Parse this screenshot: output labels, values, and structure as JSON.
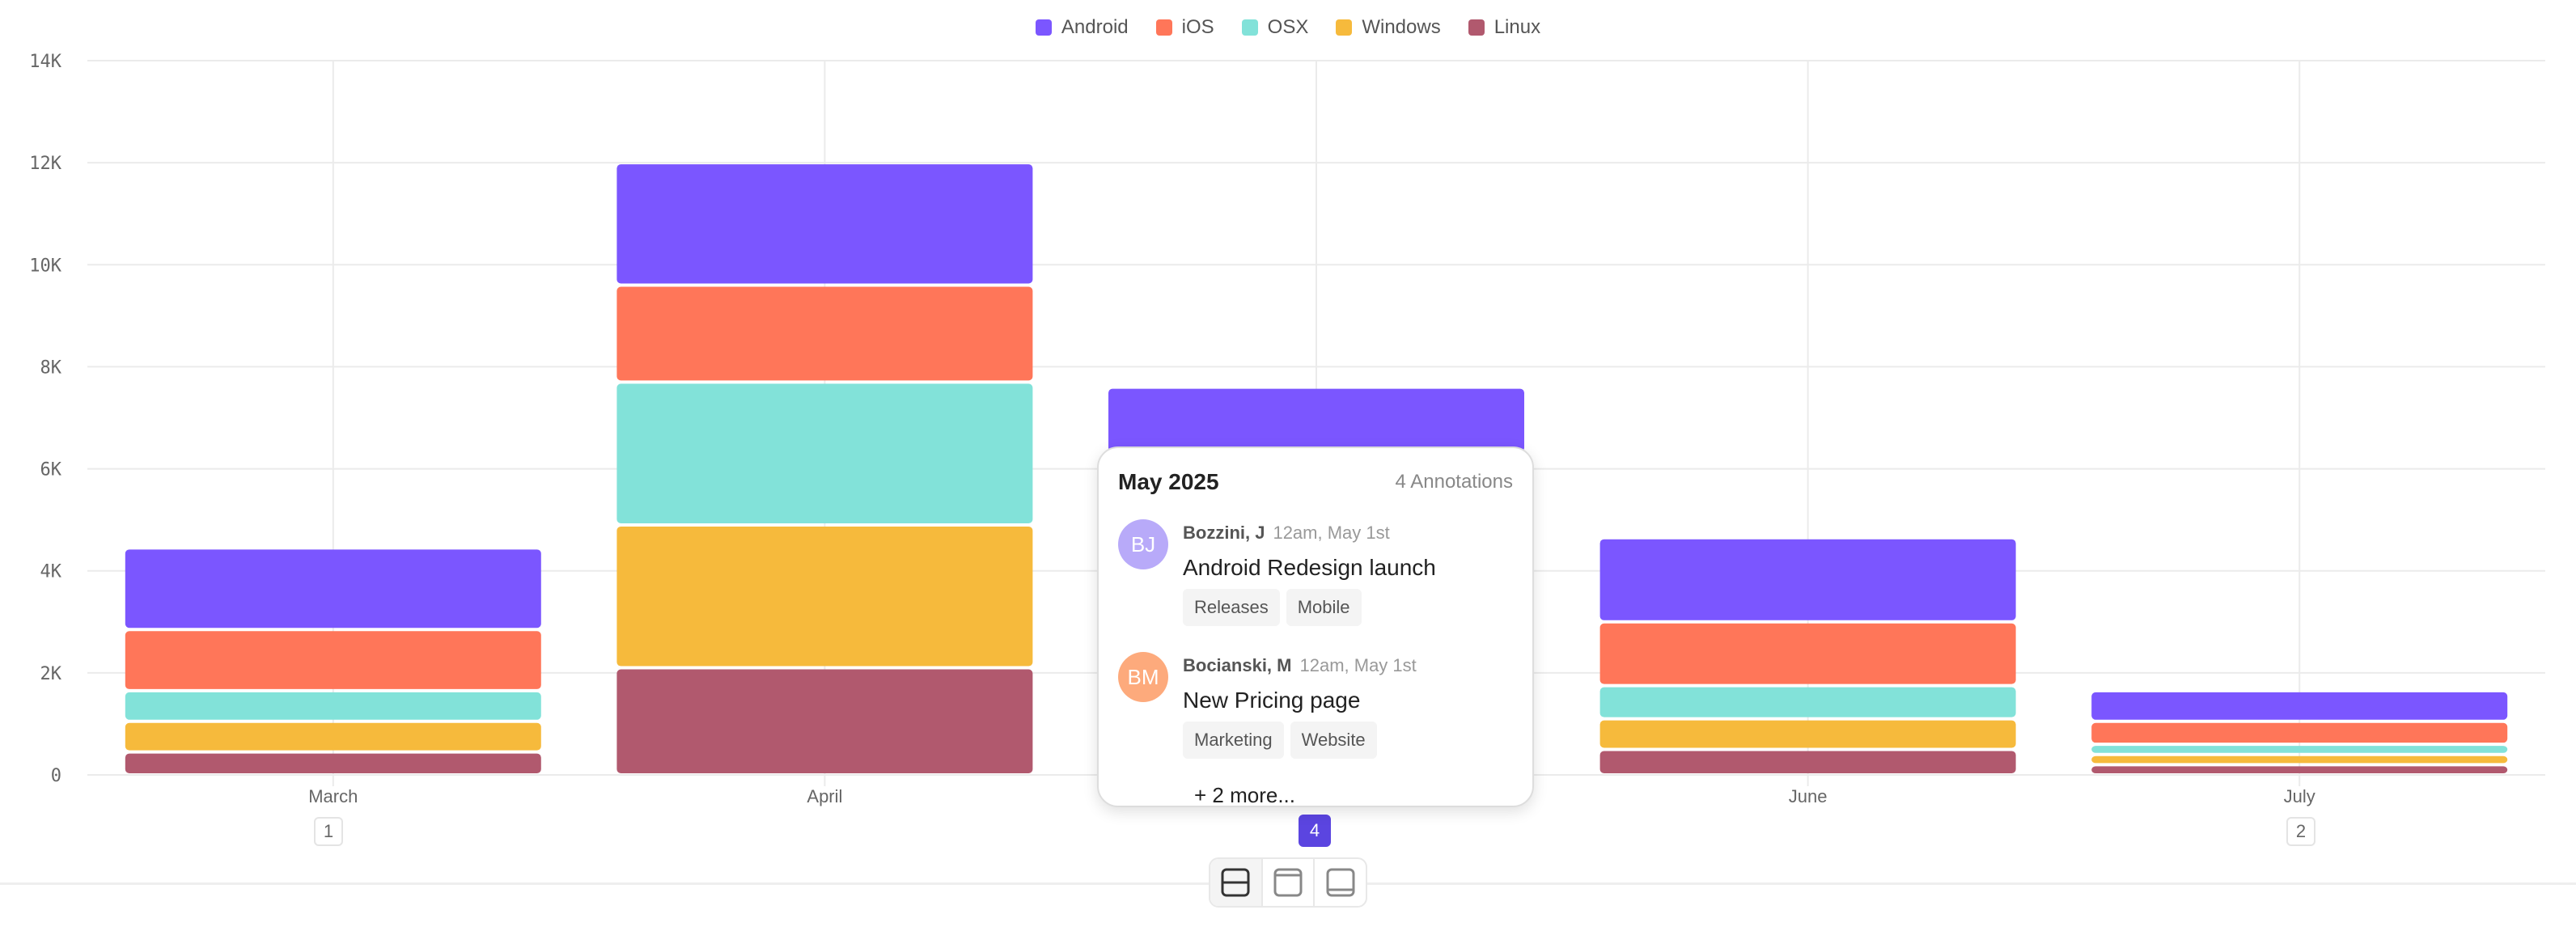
{
  "chart_data": {
    "type": "bar",
    "stacked": true,
    "categories": [
      "March",
      "April",
      "May",
      "June",
      "July"
    ],
    "series": [
      {
        "name": "Linux",
        "color": "#b1596e",
        "values": [
          450,
          2100,
          1300,
          500,
          200
        ]
      },
      {
        "name": "Windows",
        "color": "#f6ba3c",
        "values": [
          600,
          2800,
          1800,
          600,
          200
        ]
      },
      {
        "name": "OSX",
        "color": "#82e2d9",
        "values": [
          600,
          2800,
          1600,
          650,
          200
        ]
      },
      {
        "name": "iOS",
        "color": "#ff7659",
        "values": [
          1200,
          1900,
          1600,
          1250,
          450
        ]
      },
      {
        "name": "Android",
        "color": "#7b56ff",
        "values": [
          1600,
          2400,
          1300,
          1650,
          600
        ]
      }
    ],
    "legend_order": [
      "Android",
      "iOS",
      "OSX",
      "Windows",
      "Linux"
    ],
    "legend_position": "top-center",
    "ylim": [
      0,
      14000
    ],
    "yticks": [
      "0",
      "2K",
      "4K",
      "6K",
      "8K",
      "10K",
      "12K",
      "14K"
    ],
    "grid": true,
    "xlabel": "",
    "ylabel": ""
  },
  "annotation_badges": [
    {
      "category": "March",
      "count": "1",
      "active": false
    },
    {
      "category": "May",
      "count": "4",
      "active": true
    },
    {
      "category": "July",
      "count": "2",
      "active": false
    }
  ],
  "tooltip": {
    "title": "May 2025",
    "count_label": "4 Annotations",
    "annotations": [
      {
        "initials": "BJ",
        "avatar_color": "#b8aaf9",
        "author": "Bozzini, J",
        "time": "12am, May 1st",
        "text": "Android Redesign launch",
        "tags": [
          "Releases",
          "Mobile"
        ]
      },
      {
        "initials": "BM",
        "avatar_color": "#fdaa7c",
        "author": "Bocianski, M",
        "time": "12am, May 1st",
        "text": "New Pricing page",
        "tags": [
          "Marketing",
          "Website"
        ]
      }
    ],
    "more_label": "+ 2 more..."
  },
  "view_toggles": [
    {
      "icon": "split-view-icon",
      "active": true
    },
    {
      "icon": "top-panel-icon",
      "active": false
    },
    {
      "icon": "bottom-panel-icon",
      "active": false
    }
  ]
}
